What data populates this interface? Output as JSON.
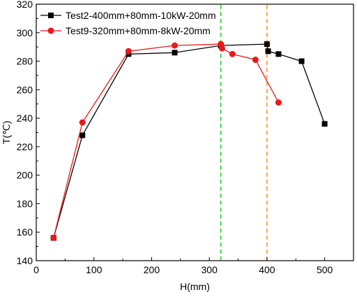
{
  "chart_data": {
    "type": "line",
    "xlabel": "H(mm)",
    "ylabel": "T(℃)",
    "xlim": [
      0,
      550
    ],
    "ylim": [
      140,
      320
    ],
    "xticks": [
      0,
      100,
      200,
      300,
      400,
      500
    ],
    "yticks": [
      140,
      160,
      180,
      200,
      220,
      240,
      260,
      280,
      300,
      320
    ],
    "legend_position": "top-left",
    "grid": false,
    "series": [
      {
        "name": "Test2-400mm+80mm-10kW-20mm",
        "color": "#000000",
        "marker": "square",
        "x": [
          30,
          80,
          160,
          240,
          320,
          400,
          402,
          420,
          460,
          500
        ],
        "y": [
          156,
          228,
          285,
          286,
          291,
          292,
          287,
          285,
          280,
          236
        ]
      },
      {
        "name": "Test9-320mm+80mm-8kW-20mm",
        "color": "#e8191b",
        "marker": "circle",
        "x": [
          30,
          80,
          160,
          240,
          320,
          322,
          340,
          380,
          420
        ],
        "y": [
          156,
          237,
          287,
          291,
          292,
          289,
          285,
          281,
          251
        ]
      }
    ],
    "reference_lines": [
      {
        "axis": "x",
        "value": 320,
        "color": "#22cc22",
        "style": "dashed"
      },
      {
        "axis": "x",
        "value": 400,
        "color": "#ff8c1a",
        "style": "dashed"
      }
    ]
  }
}
